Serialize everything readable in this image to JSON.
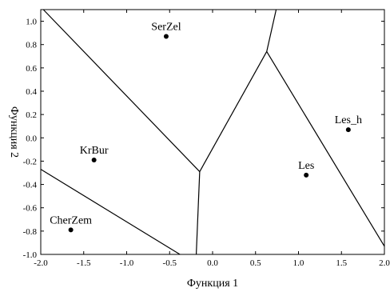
{
  "chart_data": {
    "type": "scatter",
    "title": "",
    "xlabel": "Функция 1",
    "ylabel": "Функция 2",
    "xlim": [
      -2.0,
      2.0
    ],
    "ylim": [
      -1.0,
      1.1
    ],
    "grid": false,
    "x_ticks": [
      -2.0,
      -1.5,
      -1.0,
      -0.5,
      0.0,
      0.5,
      1.0,
      1.5,
      2.0
    ],
    "y_ticks": [
      -1.0,
      -0.8,
      -0.6,
      -0.4,
      -0.2,
      0.0,
      0.2,
      0.4,
      0.6,
      0.8,
      1.0
    ],
    "x_tick_labels": [
      "-2.0",
      "-1.5",
      "-1.0",
      "-0.5",
      "0.0",
      "0.5",
      "1.0",
      "1.5",
      "2.0"
    ],
    "y_tick_labels": [
      "-1.0",
      "-0.8",
      "-0.6",
      "-0.4",
      "-0.2",
      "0.0",
      "0.2",
      "0.4",
      "0.6",
      "0.8",
      "1.0"
    ],
    "points": [
      {
        "label": "SerZel",
        "x": -0.54,
        "y": 0.87
      },
      {
        "label": "KrBur",
        "x": -1.38,
        "y": -0.19
      },
      {
        "label": "CherZem",
        "x": -1.65,
        "y": -0.79
      },
      {
        "label": "Les",
        "x": 1.09,
        "y": -0.32
      },
      {
        "label": "Les_h",
        "x": 1.58,
        "y": 0.07
      }
    ],
    "boundary_lines": [
      {
        "from": [
          -1.97,
          1.1
        ],
        "to": [
          -0.15,
          -0.29
        ]
      },
      {
        "from": [
          -0.15,
          -0.29
        ],
        "to": [
          -0.19,
          -1.0
        ]
      },
      {
        "from": [
          -0.15,
          -0.29
        ],
        "to": [
          0.63,
          0.74
        ]
      },
      {
        "from": [
          0.63,
          0.74
        ],
        "to": [
          0.74,
          1.1
        ]
      },
      {
        "from": [
          0.63,
          0.74
        ],
        "to": [
          2.0,
          -0.93
        ]
      },
      {
        "from": [
          -2.0,
          -0.27
        ],
        "to": [
          -0.38,
          -1.0
        ]
      }
    ]
  }
}
